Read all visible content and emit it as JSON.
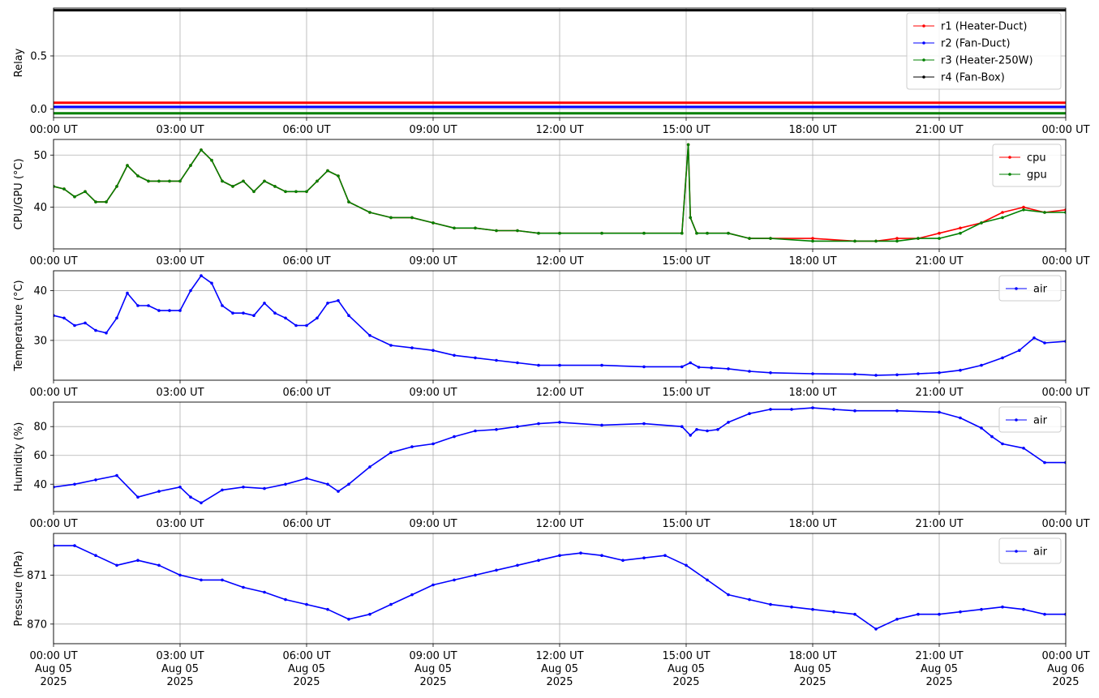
{
  "x_ticks": [
    "00:00 UT",
    "03:00 UT",
    "06:00 UT",
    "09:00 UT",
    "12:00 UT",
    "15:00 UT",
    "18:00 UT",
    "21:00 UT",
    "00:00 UT"
  ],
  "x_date_lines": [
    "Aug 05",
    "Aug 05",
    "Aug 05",
    "Aug 05",
    "Aug 05",
    "Aug 05",
    "Aug 05",
    "Aug 05",
    "Aug 06"
  ],
  "x_year_lines": [
    "2025",
    "2025",
    "2025",
    "2025",
    "2025",
    "2025",
    "2025",
    "2025",
    "2025"
  ],
  "chart_data": [
    {
      "id": "relay",
      "type": "line",
      "ylabel": "Relay",
      "ylim": [
        -0.08,
        0.95
      ],
      "yticks": [
        0.0,
        0.5
      ],
      "ytick_labels": [
        "0.0",
        "0.5"
      ],
      "grid": true,
      "legend": "top-right",
      "x_hours": [
        0,
        24
      ],
      "series": [
        {
          "name": "r1 (Heater-Duct)",
          "color": "#ff0000",
          "x": [
            0,
            24
          ],
          "y": [
            0.06,
            0.06
          ]
        },
        {
          "name": "r2 (Fan-Duct)",
          "color": "#0000ff",
          "x": [
            0,
            24
          ],
          "y": [
            0.02,
            0.02
          ]
        },
        {
          "name": "r3 (Heater-250W)",
          "color": "#008000",
          "x": [
            0,
            24
          ],
          "y": [
            -0.04,
            -0.04
          ]
        },
        {
          "name": "r4 (Fan-Box)",
          "color": "#000000",
          "x": [
            0,
            24
          ],
          "y": [
            0.93,
            0.93
          ]
        }
      ]
    },
    {
      "id": "cpu_gpu",
      "type": "line",
      "ylabel": "CPU/GPU (°C)",
      "ylim": [
        32,
        53
      ],
      "yticks": [
        40,
        50
      ],
      "ytick_labels": [
        "40",
        "50"
      ],
      "grid": true,
      "legend": "top-right",
      "series": [
        {
          "name": "cpu",
          "color": "#ff0000",
          "x": [
            0,
            0.25,
            0.5,
            0.75,
            1.0,
            1.25,
            1.5,
            1.75,
            2.0,
            2.25,
            2.5,
            2.75,
            3.0,
            3.25,
            3.5,
            3.75,
            4.0,
            4.25,
            4.5,
            4.75,
            5.0,
            5.25,
            5.5,
            5.75,
            6.0,
            6.25,
            6.5,
            6.75,
            7.0,
            7.5,
            8.0,
            8.5,
            9.0,
            9.5,
            10.0,
            10.5,
            11.0,
            11.5,
            12.0,
            13.0,
            14.0,
            14.9,
            15.05,
            15.1,
            15.25,
            15.5,
            16.0,
            16.5,
            17.0,
            18.0,
            19.0,
            19.5,
            20.0,
            20.5,
            21.0,
            21.5,
            22.0,
            22.5,
            23.0,
            23.5,
            24.0
          ],
          "y": [
            44.0,
            43.5,
            42.0,
            43.0,
            41.0,
            41.0,
            44.0,
            48.0,
            46.0,
            45.0,
            45.0,
            45.0,
            45.0,
            48.0,
            51.0,
            49.0,
            45.0,
            44.0,
            45.0,
            43.0,
            45.0,
            44.0,
            43.0,
            43.0,
            43.0,
            45.0,
            47.0,
            46.0,
            41.0,
            39.0,
            38.0,
            38.0,
            37.0,
            36.0,
            36.0,
            35.5,
            35.5,
            35.0,
            35.0,
            35.0,
            35.0,
            35.0,
            52.0,
            38.0,
            35.0,
            35.0,
            35.0,
            34.0,
            34.0,
            34.0,
            33.5,
            33.5,
            34.0,
            34.0,
            35.0,
            36.0,
            37.0,
            39.0,
            40.0,
            39.0,
            39.5
          ]
        },
        {
          "name": "gpu",
          "color": "#008000",
          "x": [
            0,
            0.25,
            0.5,
            0.75,
            1.0,
            1.25,
            1.5,
            1.75,
            2.0,
            2.25,
            2.5,
            2.75,
            3.0,
            3.25,
            3.5,
            3.75,
            4.0,
            4.25,
            4.5,
            4.75,
            5.0,
            5.25,
            5.5,
            5.75,
            6.0,
            6.25,
            6.5,
            6.75,
            7.0,
            7.5,
            8.0,
            8.5,
            9.0,
            9.5,
            10.0,
            10.5,
            11.0,
            11.5,
            12.0,
            13.0,
            14.0,
            14.9,
            15.05,
            15.1,
            15.25,
            15.5,
            16.0,
            16.5,
            17.0,
            18.0,
            19.0,
            19.5,
            20.0,
            20.5,
            21.0,
            21.5,
            22.0,
            22.5,
            23.0,
            23.5,
            24.0
          ],
          "y": [
            44.0,
            43.5,
            42.0,
            43.0,
            41.0,
            41.0,
            44.0,
            48.0,
            46.0,
            45.0,
            45.0,
            45.0,
            45.0,
            48.0,
            51.0,
            49.0,
            45.0,
            44.0,
            45.0,
            43.0,
            45.0,
            44.0,
            43.0,
            43.0,
            43.0,
            45.0,
            47.0,
            46.0,
            41.0,
            39.0,
            38.0,
            38.0,
            37.0,
            36.0,
            36.0,
            35.5,
            35.5,
            35.0,
            35.0,
            35.0,
            35.0,
            35.0,
            52.0,
            38.0,
            35.0,
            35.0,
            35.0,
            34.0,
            34.0,
            33.5,
            33.5,
            33.5,
            33.5,
            34.0,
            34.0,
            35.0,
            37.0,
            38.0,
            39.5,
            39.0,
            39.0
          ]
        }
      ]
    },
    {
      "id": "temperature",
      "type": "line",
      "ylabel": "Temperature (°C)",
      "ylim": [
        22,
        44
      ],
      "yticks": [
        30,
        40
      ],
      "ytick_labels": [
        "30",
        "40"
      ],
      "grid": true,
      "legend": "top-right",
      "series": [
        {
          "name": "air",
          "color": "#0000ff",
          "x": [
            0,
            0.25,
            0.5,
            0.75,
            1.0,
            1.25,
            1.5,
            1.75,
            2.0,
            2.25,
            2.5,
            2.75,
            3.0,
            3.25,
            3.5,
            3.75,
            4.0,
            4.25,
            4.5,
            4.75,
            5.0,
            5.25,
            5.5,
            5.75,
            6.0,
            6.25,
            6.5,
            6.75,
            7.0,
            7.5,
            8.0,
            8.5,
            9.0,
            9.5,
            10.0,
            10.5,
            11.0,
            11.5,
            12.0,
            13.0,
            14.0,
            14.9,
            15.1,
            15.3,
            15.6,
            16.0,
            16.5,
            17.0,
            18.0,
            19.0,
            19.5,
            20.0,
            20.5,
            21.0,
            21.5,
            22.0,
            22.5,
            22.9,
            23.25,
            23.5,
            24.0
          ],
          "y": [
            35.0,
            34.5,
            33.0,
            33.5,
            32.0,
            31.5,
            34.5,
            39.5,
            37.0,
            37.0,
            36.0,
            36.0,
            36.0,
            40.0,
            43.0,
            41.5,
            37.0,
            35.5,
            35.5,
            35.0,
            37.5,
            35.5,
            34.5,
            33.0,
            33.0,
            34.5,
            37.5,
            38.0,
            35.0,
            31.0,
            29.0,
            28.5,
            28.0,
            27.0,
            26.5,
            26.0,
            25.5,
            25.0,
            25.0,
            25.0,
            24.7,
            24.7,
            25.5,
            24.6,
            24.5,
            24.3,
            23.8,
            23.5,
            23.3,
            23.2,
            23.0,
            23.1,
            23.3,
            23.5,
            24.0,
            25.0,
            26.5,
            28.0,
            30.5,
            29.5,
            29.8
          ]
        }
      ]
    },
    {
      "id": "humidity",
      "type": "line",
      "ylabel": "Humidity (%)",
      "ylim": [
        21,
        97
      ],
      "yticks": [
        40,
        60,
        80
      ],
      "ytick_labels": [
        "40",
        "60",
        "80"
      ],
      "grid": true,
      "legend": "top-right",
      "series": [
        {
          "name": "air",
          "color": "#0000ff",
          "x": [
            0,
            0.5,
            1.0,
            1.5,
            2.0,
            2.5,
            3.0,
            3.25,
            3.5,
            4.0,
            4.5,
            5.0,
            5.5,
            6.0,
            6.5,
            6.75,
            7.0,
            7.5,
            8.0,
            8.5,
            9.0,
            9.5,
            10.0,
            10.5,
            11.0,
            11.5,
            12.0,
            13.0,
            14.0,
            14.9,
            15.1,
            15.25,
            15.5,
            15.75,
            16.0,
            16.5,
            17.0,
            17.5,
            18.0,
            18.5,
            19.0,
            20.0,
            21.0,
            21.5,
            22.0,
            22.25,
            22.5,
            23.0,
            23.5,
            24.0
          ],
          "y": [
            38.0,
            40.0,
            43.0,
            46.0,
            31.0,
            35.0,
            38.0,
            31.0,
            27.0,
            36.0,
            38.0,
            37.0,
            40.0,
            44.0,
            40.0,
            35.0,
            40.0,
            52.0,
            62.0,
            66.0,
            68.0,
            73.0,
            77.0,
            78.0,
            80.0,
            82.0,
            83.0,
            81.0,
            82.0,
            80.0,
            74.0,
            78.0,
            77.0,
            78.0,
            83.0,
            89.0,
            92.0,
            92.0,
            93.0,
            92.0,
            91.0,
            91.0,
            90.0,
            86.0,
            79.0,
            73.0,
            68.0,
            65.0,
            55.0,
            55.0
          ]
        }
      ]
    },
    {
      "id": "pressure",
      "type": "line",
      "ylabel": "Pressure (hPa)",
      "ylim": [
        869.6,
        871.85
      ],
      "yticks": [
        870,
        871
      ],
      "ytick_labels": [
        "870",
        "871"
      ],
      "grid": true,
      "legend": "top-right",
      "series": [
        {
          "name": "air",
          "color": "#0000ff",
          "x": [
            0,
            0.5,
            1.0,
            1.5,
            2.0,
            2.5,
            3.0,
            3.5,
            4.0,
            4.5,
            5.0,
            5.5,
            6.0,
            6.5,
            7.0,
            7.5,
            8.0,
            8.5,
            9.0,
            9.5,
            10.0,
            10.5,
            11.0,
            11.5,
            12.0,
            12.5,
            13.0,
            13.5,
            14.0,
            14.5,
            15.0,
            15.5,
            16.0,
            16.5,
            17.0,
            17.5,
            18.0,
            18.5,
            19.0,
            19.5,
            20.0,
            20.5,
            21.0,
            21.5,
            22.0,
            22.5,
            23.0,
            23.5,
            24.0
          ],
          "y": [
            871.6,
            871.6,
            871.4,
            871.2,
            871.3,
            871.2,
            871.0,
            870.9,
            870.9,
            870.75,
            870.65,
            870.5,
            870.4,
            870.3,
            870.1,
            870.2,
            870.4,
            870.6,
            870.8,
            870.9,
            871.0,
            871.1,
            871.2,
            871.3,
            871.4,
            871.45,
            871.4,
            871.3,
            871.35,
            871.4,
            871.2,
            870.9,
            870.6,
            870.5,
            870.4,
            870.35,
            870.3,
            870.25,
            870.2,
            869.9,
            870.1,
            870.2,
            870.2,
            870.25,
            870.3,
            870.35,
            870.3,
            870.2,
            870.2
          ]
        }
      ]
    }
  ]
}
